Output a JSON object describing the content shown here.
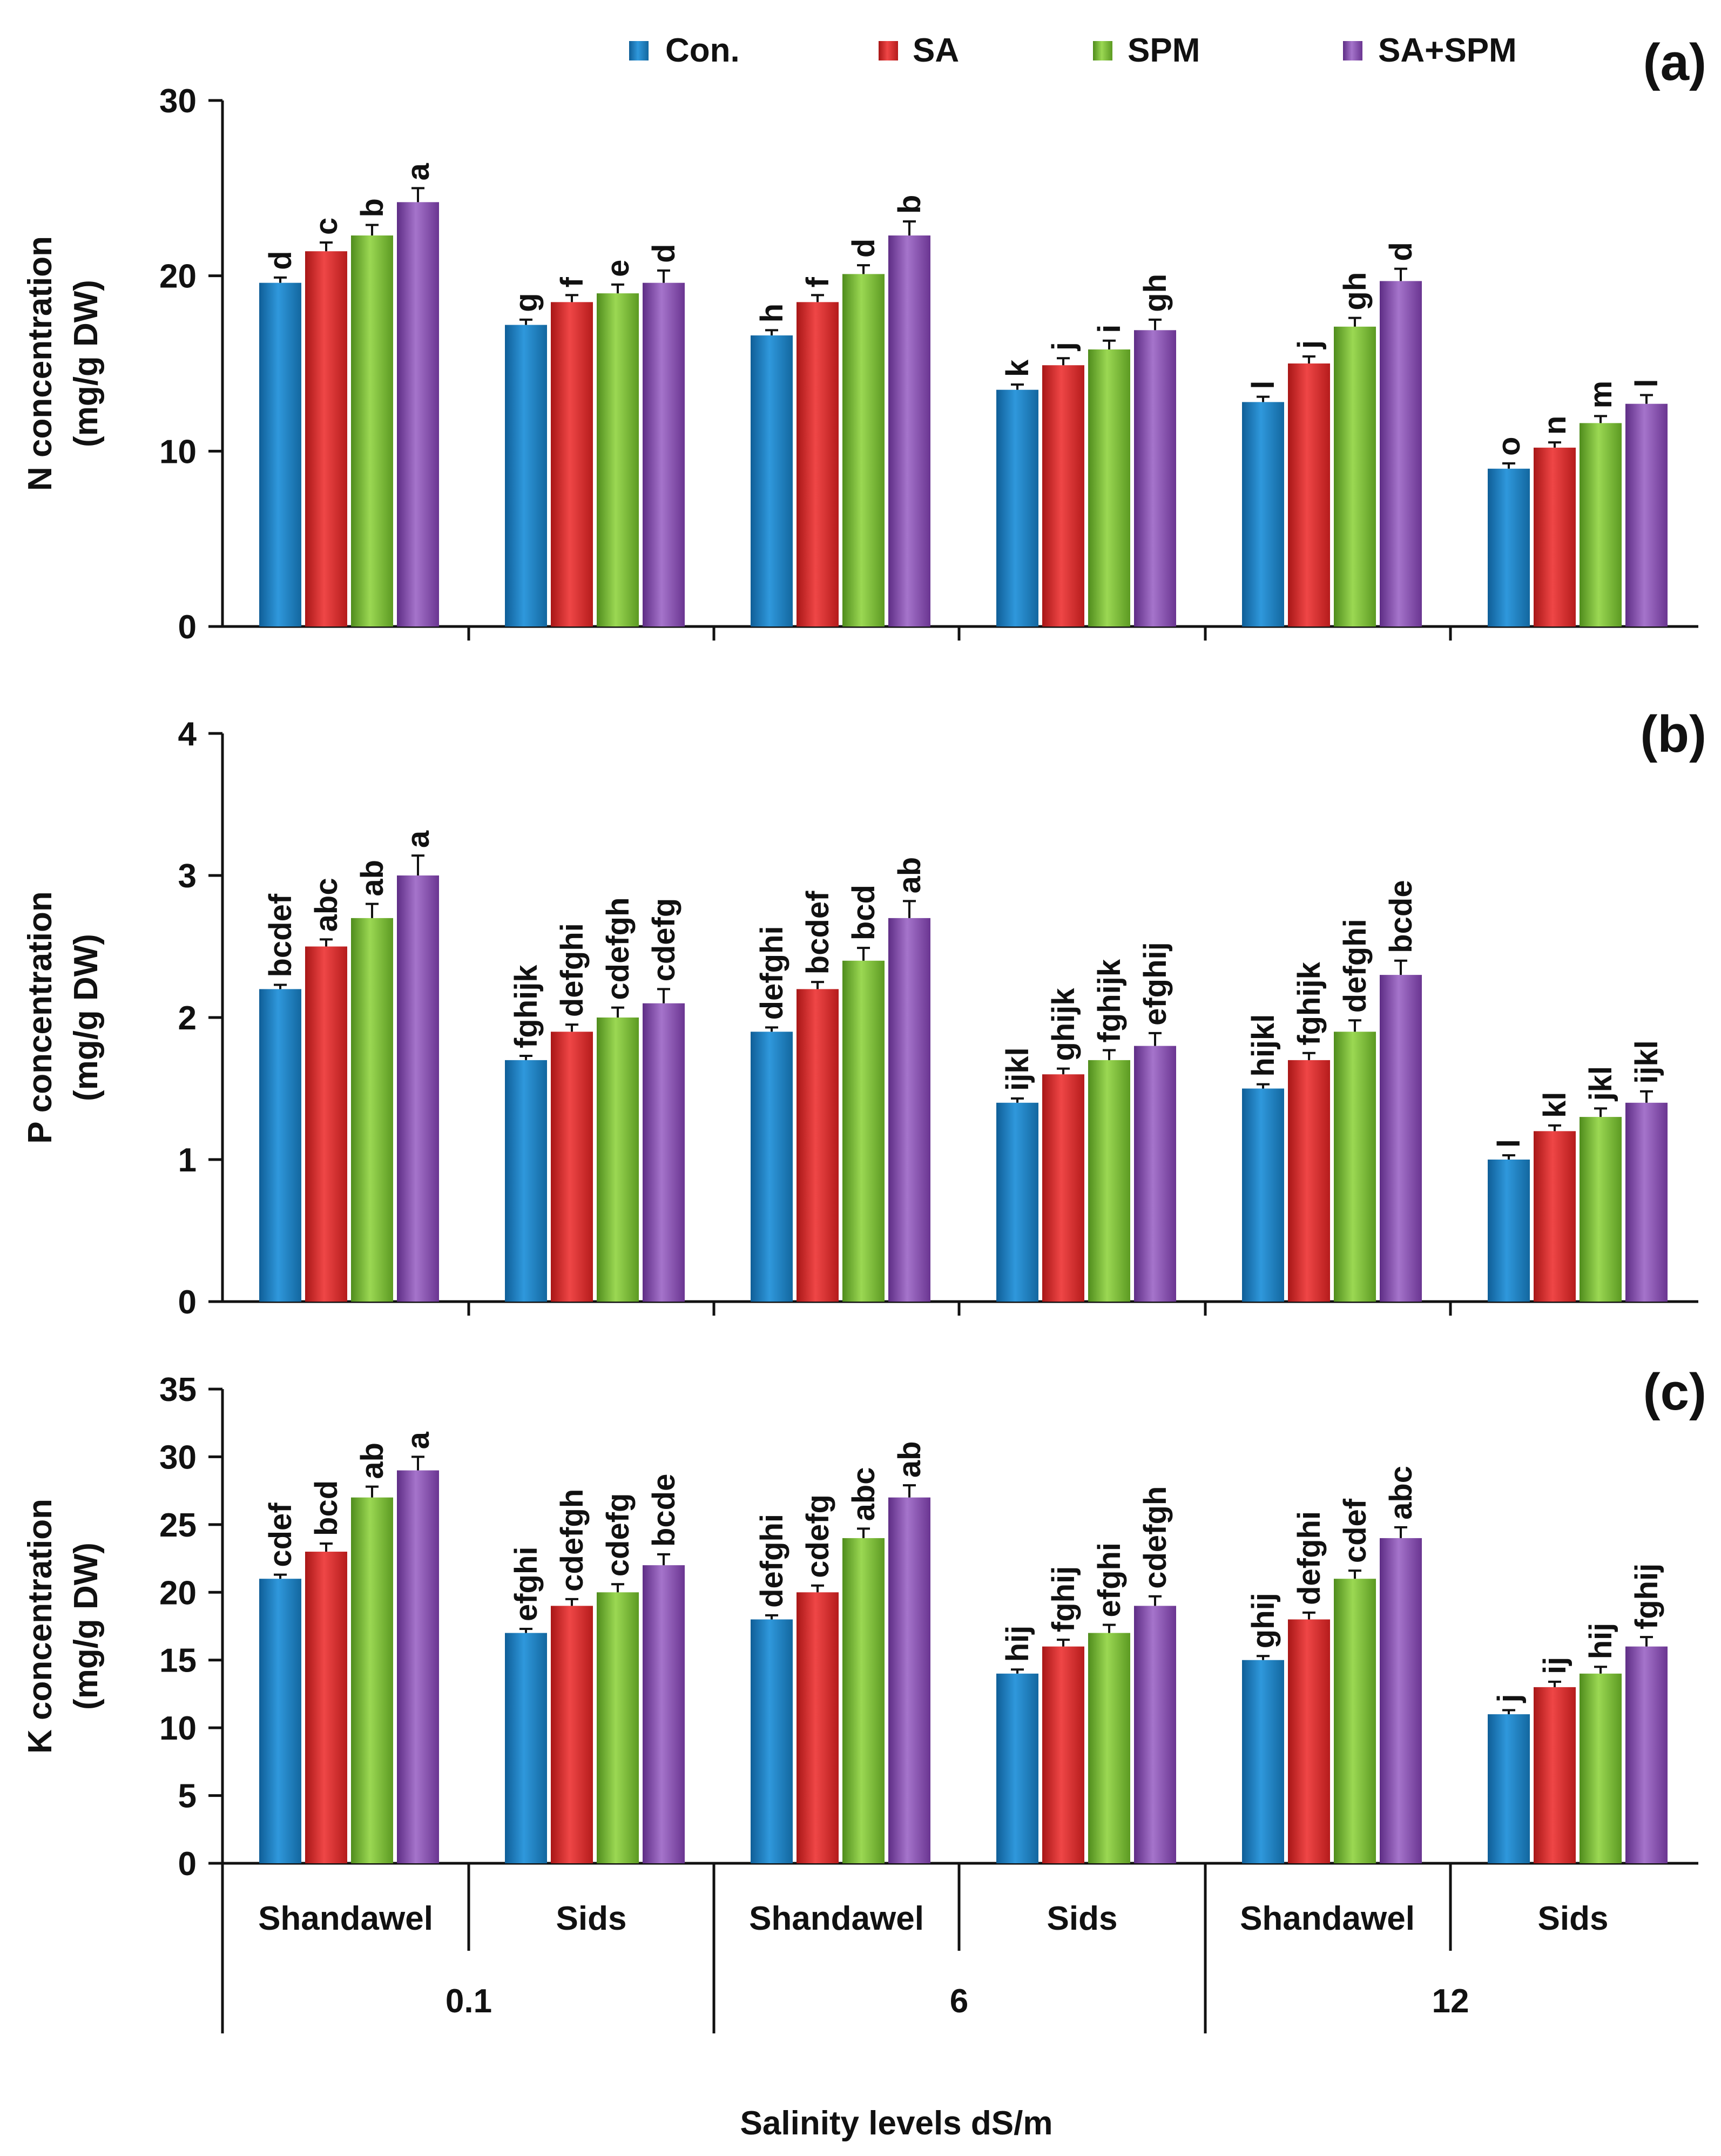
{
  "legend": [
    {
      "name": "Con.",
      "color": "#1b7fc4"
    },
    {
      "name": "SA",
      "color": "#e02a2a"
    },
    {
      "name": "SPM",
      "color": "#7cc23a"
    },
    {
      "name": "SA+SPM",
      "color": "#8a4fb3"
    }
  ],
  "chart_data": [
    {
      "type": "bar",
      "panel_label": "(a)",
      "ylabel_line1": "N concentration",
      "ylabel_line2": "(mg/g DW)",
      "ylim": [
        0,
        30
      ],
      "yticks": [
        0,
        10,
        20,
        30
      ],
      "categories": [
        "0.1 Shandawel",
        "0.1 Sids",
        "6 Shandawel",
        "6 Sids",
        "12 Shandawel",
        "12 Sids"
      ],
      "series": [
        {
          "name": "Con.",
          "values": [
            19.6,
            17.2,
            16.6,
            13.5,
            12.8,
            9.0
          ],
          "errors": [
            0.3,
            0.3,
            0.3,
            0.3,
            0.3,
            0.3
          ],
          "letters": [
            "d",
            "g",
            "h",
            "k",
            "l",
            "o"
          ]
        },
        {
          "name": "SA",
          "values": [
            21.4,
            18.5,
            18.5,
            14.9,
            15.0,
            10.2
          ],
          "errors": [
            0.5,
            0.4,
            0.4,
            0.4,
            0.4,
            0.3
          ],
          "letters": [
            "c",
            "f",
            "f",
            "j",
            "j",
            "n"
          ]
        },
        {
          "name": "SPM",
          "values": [
            22.3,
            19.0,
            20.1,
            15.8,
            17.1,
            11.6
          ],
          "errors": [
            0.6,
            0.5,
            0.5,
            0.5,
            0.5,
            0.4
          ],
          "letters": [
            "b",
            "e",
            "d",
            "i",
            "gh",
            "m"
          ]
        },
        {
          "name": "SA+SPM",
          "values": [
            24.2,
            19.6,
            22.3,
            16.9,
            19.7,
            12.7
          ],
          "errors": [
            0.8,
            0.7,
            0.8,
            0.6,
            0.7,
            0.5
          ],
          "letters": [
            "a",
            "d",
            "b",
            "gh",
            "d",
            "l"
          ]
        }
      ]
    },
    {
      "type": "bar",
      "panel_label": "(b)",
      "ylabel_line1": "P concentration",
      "ylabel_line2": "(mg/g DW)",
      "ylim": [
        0,
        4
      ],
      "yticks": [
        0,
        1,
        2,
        3,
        4
      ],
      "categories": [
        "0.1 Shandawel",
        "0.1 Sids",
        "6 Shandawel",
        "6 Sids",
        "12 Shandawel",
        "12 Sids"
      ],
      "series": [
        {
          "name": "Con.",
          "values": [
            2.2,
            1.7,
            1.9,
            1.4,
            1.5,
            1.0
          ],
          "errors": [
            0.03,
            0.03,
            0.03,
            0.03,
            0.03,
            0.03
          ],
          "letters": [
            "bcdef",
            "fghijk",
            "defghi",
            "ijkl",
            "hijkl",
            "l"
          ]
        },
        {
          "name": "SA",
          "values": [
            2.5,
            1.9,
            2.2,
            1.6,
            1.7,
            1.2
          ],
          "errors": [
            0.05,
            0.05,
            0.05,
            0.04,
            0.05,
            0.04
          ],
          "letters": [
            "abc",
            "defghi",
            "bcdef",
            "ghijk",
            "fghijk",
            "kl"
          ]
        },
        {
          "name": "SPM",
          "values": [
            2.7,
            2.0,
            2.4,
            1.7,
            1.9,
            1.3
          ],
          "errors": [
            0.1,
            0.07,
            0.09,
            0.07,
            0.08,
            0.06
          ],
          "letters": [
            "ab",
            "cdefgh",
            "bcd",
            "fghijk",
            "defghi",
            "jkl"
          ]
        },
        {
          "name": "SA+SPM",
          "values": [
            3.0,
            2.1,
            2.7,
            1.8,
            2.3,
            1.4
          ],
          "errors": [
            0.14,
            0.1,
            0.12,
            0.09,
            0.1,
            0.08
          ],
          "letters": [
            "a",
            "cdefg",
            "ab",
            "efghij",
            "bcde",
            "ijkl"
          ]
        }
      ]
    },
    {
      "type": "bar",
      "panel_label": "(c)",
      "ylabel_line1": "K concentration",
      "ylabel_line2": "(mg/g DW)",
      "ylim": [
        0,
        35
      ],
      "yticks": [
        0,
        5,
        10,
        15,
        20,
        25,
        30,
        35
      ],
      "categories": [
        "0.1 Shandawel",
        "0.1 Sids",
        "6 Shandawel",
        "6 Sids",
        "12 Shandawel",
        "12 Sids"
      ],
      "series": [
        {
          "name": "Con.",
          "values": [
            21,
            17,
            18,
            14,
            15,
            11
          ],
          "errors": [
            0.3,
            0.3,
            0.3,
            0.3,
            0.3,
            0.3
          ],
          "letters": [
            "cdef",
            "efghi",
            "defghi",
            "hij",
            "ghij",
            "j"
          ]
        },
        {
          "name": "SA",
          "values": [
            23,
            19,
            20,
            16,
            18,
            13
          ],
          "errors": [
            0.6,
            0.5,
            0.5,
            0.5,
            0.5,
            0.4
          ],
          "letters": [
            "bcd",
            "cdefgh",
            "cdefg",
            "fghij",
            "defghi",
            "ij"
          ]
        },
        {
          "name": "SPM",
          "values": [
            27,
            20,
            24,
            17,
            21,
            14
          ],
          "errors": [
            0.8,
            0.6,
            0.7,
            0.6,
            0.6,
            0.5
          ],
          "letters": [
            "ab",
            "cdefg",
            "abc",
            "efghi",
            "cdef",
            "hij"
          ]
        },
        {
          "name": "SA+SPM",
          "values": [
            29,
            22,
            27,
            19,
            24,
            16
          ],
          "errors": [
            1.0,
            0.8,
            0.9,
            0.7,
            0.8,
            0.7
          ],
          "letters": [
            "a",
            "bcde",
            "ab",
            "cdefgh",
            "abc",
            "fghij"
          ]
        }
      ]
    }
  ],
  "x_axis": {
    "cultivars": [
      "Shandawel",
      "Sids",
      "Shandawel",
      "Sids",
      "Shandawel",
      "Sids"
    ],
    "salinity_levels": [
      "0.1",
      "6",
      "12"
    ],
    "title": "Salinity levels dS/m"
  }
}
